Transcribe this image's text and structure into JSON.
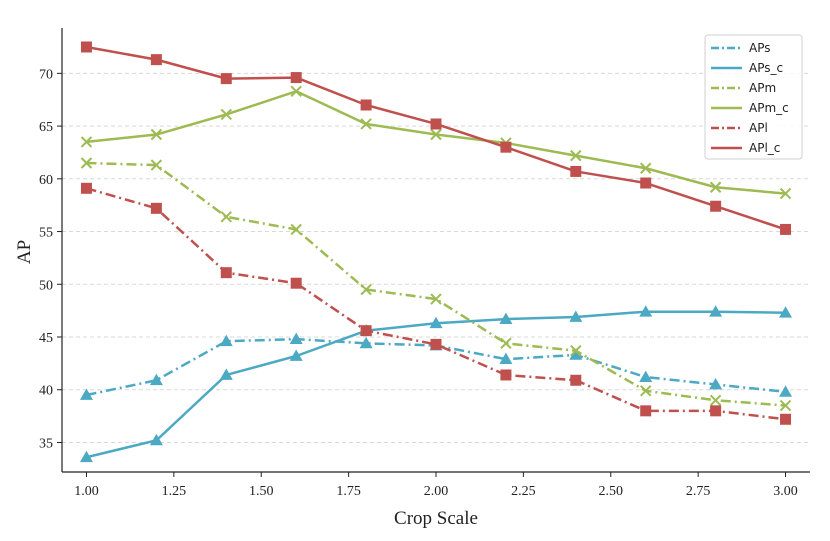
{
  "chart_data": {
    "type": "line",
    "xlabel": "Crop Scale",
    "ylabel": "AP",
    "xlim": [
      0.93,
      3.07
    ],
    "ylim": [
      32.2,
      74.3
    ],
    "xticks": [
      1.0,
      1.25,
      1.5,
      1.75,
      2.0,
      2.25,
      2.5,
      2.75,
      3.0
    ],
    "xtick_labels": [
      "1.00",
      "1.25",
      "1.50",
      "1.75",
      "2.00",
      "2.25",
      "2.50",
      "2.75",
      "3.00"
    ],
    "yticks": [
      35,
      40,
      45,
      50,
      55,
      60,
      65,
      70
    ],
    "ytick_labels": [
      "35",
      "40",
      "45",
      "50",
      "55",
      "60",
      "65",
      "70"
    ],
    "grid": "horizontal dashed",
    "legend_position": "top-right",
    "x": [
      1.0,
      1.2,
      1.4,
      1.6,
      1.8,
      2.0,
      2.2,
      2.4,
      2.6,
      2.8,
      3.0
    ],
    "series": [
      {
        "name": " APs",
        "color": "#4ca9c3",
        "dash": "dashdot",
        "marker": "triangle",
        "values": [
          39.5,
          40.9,
          44.6,
          44.8,
          44.4,
          44.2,
          42.9,
          43.3,
          41.2,
          40.5,
          39.8
        ]
      },
      {
        "name": "APs_c",
        "color": "#4ca9c3",
        "dash": "solid",
        "marker": "triangle",
        "values": [
          33.6,
          35.2,
          41.4,
          43.2,
          45.6,
          46.3,
          46.7,
          46.9,
          47.4,
          47.4,
          47.3
        ]
      },
      {
        "name": "APm",
        "color": "#9dbb52",
        "dash": "dashdot",
        "marker": "x",
        "values": [
          61.5,
          61.3,
          56.4,
          55.2,
          49.5,
          48.6,
          44.4,
          43.7,
          39.9,
          39.0,
          38.5
        ]
      },
      {
        "name": "APm_c",
        "color": "#9dbb52",
        "dash": "solid",
        "marker": "x",
        "values": [
          63.5,
          64.2,
          66.1,
          68.3,
          65.2,
          64.2,
          63.4,
          62.2,
          61.0,
          59.2,
          58.6
        ]
      },
      {
        "name": "APl",
        "color": "#c0504d",
        "dash": "dashdot",
        "marker": "square",
        "values": [
          59.1,
          57.2,
          51.1,
          50.1,
          45.6,
          44.3,
          41.4,
          40.9,
          38.0,
          38.0,
          37.2
        ]
      },
      {
        "name": "APl_c",
        "color": "#c0504d",
        "dash": "solid",
        "marker": "square",
        "values": [
          72.5,
          71.3,
          69.5,
          69.6,
          67.0,
          65.2,
          63.0,
          60.7,
          59.6,
          57.4,
          55.2
        ]
      }
    ]
  }
}
